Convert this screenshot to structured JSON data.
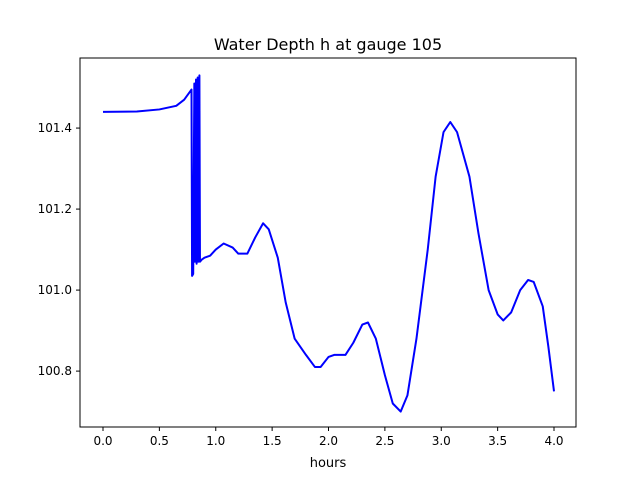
{
  "chart_data": {
    "type": "line",
    "title": "Water Depth h at gauge 105",
    "xlabel": "hours",
    "ylabel": "",
    "xlim": [
      -0.204,
      4.195
    ],
    "ylim": [
      100.662,
      101.573
    ],
    "xticks": [
      0.0,
      0.5,
      1.0,
      1.5,
      2.0,
      2.5,
      3.0,
      3.5,
      4.0
    ],
    "xtick_labels": [
      "0.0",
      "0.5",
      "1.0",
      "1.5",
      "2.0",
      "2.5",
      "3.0",
      "3.5",
      "4.0"
    ],
    "yticks": [
      100.8,
      101.0,
      101.2,
      101.4
    ],
    "ytick_labels": [
      "100.8",
      "101.0",
      "101.2",
      "101.4"
    ],
    "grid": false,
    "series": [
      {
        "name": "h",
        "color": "#0000ff",
        "x": [
          0.0,
          0.3,
          0.5,
          0.65,
          0.72,
          0.785,
          0.79,
          0.8,
          0.81,
          0.815,
          0.825,
          0.83,
          0.84,
          0.845,
          0.855,
          0.86,
          0.875,
          0.9,
          0.95,
          1.0,
          1.07,
          1.15,
          1.2,
          1.28,
          1.35,
          1.42,
          1.47,
          1.55,
          1.62,
          1.7,
          1.8,
          1.88,
          1.93,
          2.0,
          2.05,
          2.15,
          2.22,
          2.3,
          2.35,
          2.42,
          2.5,
          2.57,
          2.64,
          2.7,
          2.78,
          2.88,
          2.95,
          3.02,
          3.08,
          3.14,
          3.25,
          3.33,
          3.42,
          3.5,
          3.55,
          3.62,
          3.7,
          3.77,
          3.82,
          3.9,
          3.95,
          4.0
        ],
        "y": [
          101.44,
          101.441,
          101.446,
          101.455,
          101.47,
          101.495,
          101.035,
          101.04,
          101.51,
          101.07,
          101.52,
          101.065,
          101.525,
          101.07,
          101.53,
          101.07,
          101.075,
          101.08,
          101.085,
          101.1,
          101.115,
          101.105,
          101.09,
          101.09,
          101.13,
          101.165,
          101.15,
          101.08,
          100.97,
          100.88,
          100.84,
          100.81,
          100.81,
          100.835,
          100.84,
          100.84,
          100.87,
          100.915,
          100.92,
          100.88,
          100.79,
          100.72,
          100.7,
          100.74,
          100.88,
          101.1,
          101.28,
          101.39,
          101.415,
          101.39,
          101.28,
          101.14,
          101.0,
          100.94,
          100.925,
          100.945,
          101.0,
          101.025,
          101.02,
          100.96,
          100.86,
          100.75
        ]
      }
    ]
  }
}
